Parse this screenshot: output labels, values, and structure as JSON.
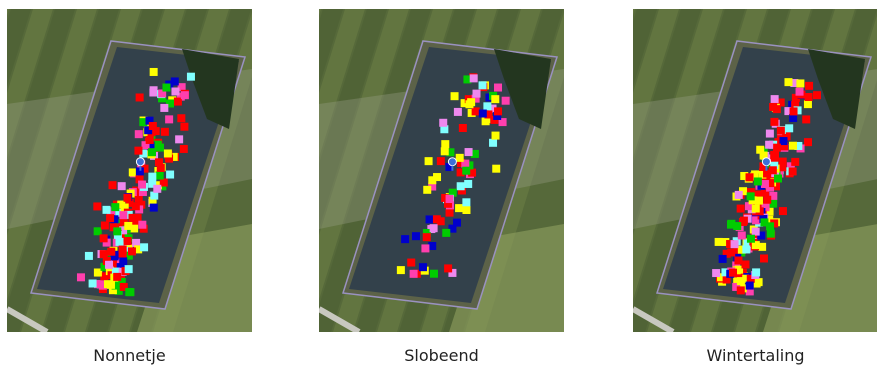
{
  "panels": [
    {
      "label": "Nonnetje"
    },
    {
      "label": "Slobeend"
    },
    {
      "label": "Wintertaling"
    }
  ]
}
